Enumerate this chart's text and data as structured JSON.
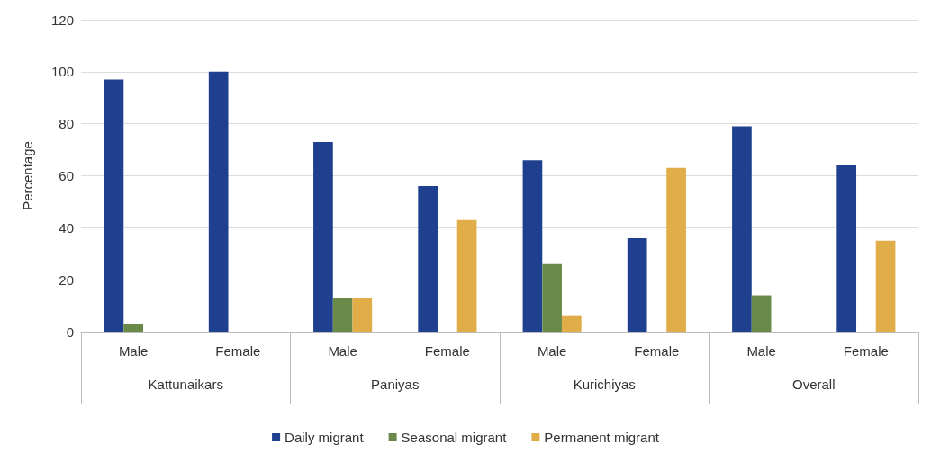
{
  "chart_data": {
    "type": "bar",
    "ylabel": "Percentage",
    "categories": [
      "Male",
      "Female",
      "Male",
      "Female",
      "Male",
      "Female",
      "Male",
      "Female"
    ],
    "annotations": [
      "Kattunaikars",
      "Paniyas",
      "Kurichiyas",
      "Overall"
    ],
    "series": [
      {
        "name": "Daily migrant",
        "color": "#1f3f8f",
        "values": [
          97,
          100,
          73,
          56,
          66,
          36,
          79,
          64
        ]
      },
      {
        "name": "Seasonal migrant",
        "color": "#6a8a4a",
        "values": [
          3,
          0,
          13,
          0,
          26,
          0,
          14,
          0
        ]
      },
      {
        "name": "Permanent migrant",
        "color": "#e0ad48",
        "values": [
          0,
          0,
          13,
          43,
          6,
          63,
          0,
          35
        ]
      }
    ],
    "ylim": [
      0,
      120
    ],
    "yticks": [
      0,
      20,
      40,
      60,
      80,
      100,
      120
    ],
    "grid": "y",
    "legend": "bottom"
  }
}
